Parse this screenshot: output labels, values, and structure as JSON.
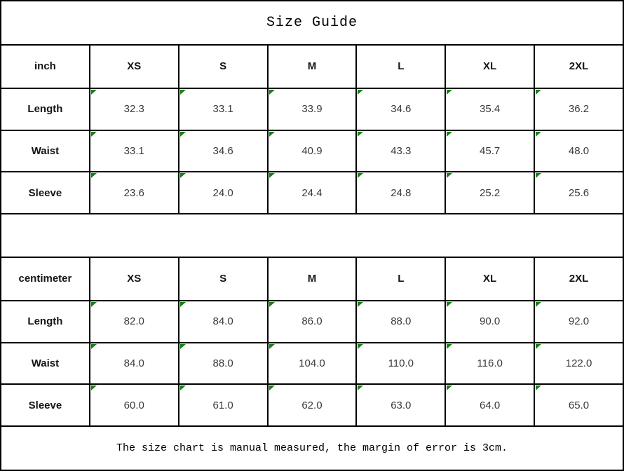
{
  "title": "Size Guide",
  "footer": "The size chart is manual measured, the margin of error is 3cm.",
  "colors": {
    "border_black": "#000000",
    "corner_flag_green": "#108410",
    "value_text": "#3a3a3a",
    "label_text": "#141414"
  },
  "tables": [
    {
      "unit_label": "inch",
      "columns": [
        "XS",
        "S",
        "M",
        "L",
        "XL",
        "2XL"
      ],
      "rows": [
        {
          "label": "Length",
          "values": [
            "32.3",
            "33.1",
            "33.9",
            "34.6",
            "35.4",
            "36.2"
          ]
        },
        {
          "label": "Waist",
          "values": [
            "33.1",
            "34.6",
            "40.9",
            "43.3",
            "45.7",
            "48.0"
          ]
        },
        {
          "label": "Sleeve",
          "values": [
            "23.6",
            "24.0",
            "24.4",
            "24.8",
            "25.2",
            "25.6"
          ]
        }
      ]
    },
    {
      "unit_label": "centimeter",
      "columns": [
        "XS",
        "S",
        "M",
        "L",
        "XL",
        "2XL"
      ],
      "rows": [
        {
          "label": "Length",
          "values": [
            "82.0",
            "84.0",
            "86.0",
            "88.0",
            "90.0",
            "92.0"
          ]
        },
        {
          "label": "Waist",
          "values": [
            "84.0",
            "88.0",
            "104.0",
            "110.0",
            "116.0",
            "122.0"
          ]
        },
        {
          "label": "Sleeve",
          "values": [
            "60.0",
            "61.0",
            "62.0",
            "63.0",
            "64.0",
            "65.0"
          ]
        }
      ]
    }
  ],
  "chart_data": [
    {
      "type": "table",
      "title": "Size Guide (inch)",
      "columns": [
        "inch",
        "XS",
        "S",
        "M",
        "L",
        "XL",
        "2XL"
      ],
      "rows": [
        [
          "Length",
          32.3,
          33.1,
          33.9,
          34.6,
          35.4,
          36.2
        ],
        [
          "Waist",
          33.1,
          34.6,
          40.9,
          43.3,
          45.7,
          48.0
        ],
        [
          "Sleeve",
          23.6,
          24.0,
          24.4,
          24.8,
          25.2,
          25.6
        ]
      ]
    },
    {
      "type": "table",
      "title": "Size Guide (centimeter)",
      "columns": [
        "centimeter",
        "XS",
        "S",
        "M",
        "L",
        "XL",
        "2XL"
      ],
      "rows": [
        [
          "Length",
          82.0,
          84.0,
          86.0,
          88.0,
          90.0,
          92.0
        ],
        [
          "Waist",
          84.0,
          88.0,
          104.0,
          110.0,
          116.0,
          122.0
        ],
        [
          "Sleeve",
          60.0,
          61.0,
          62.0,
          63.0,
          64.0,
          65.0
        ]
      ]
    }
  ]
}
